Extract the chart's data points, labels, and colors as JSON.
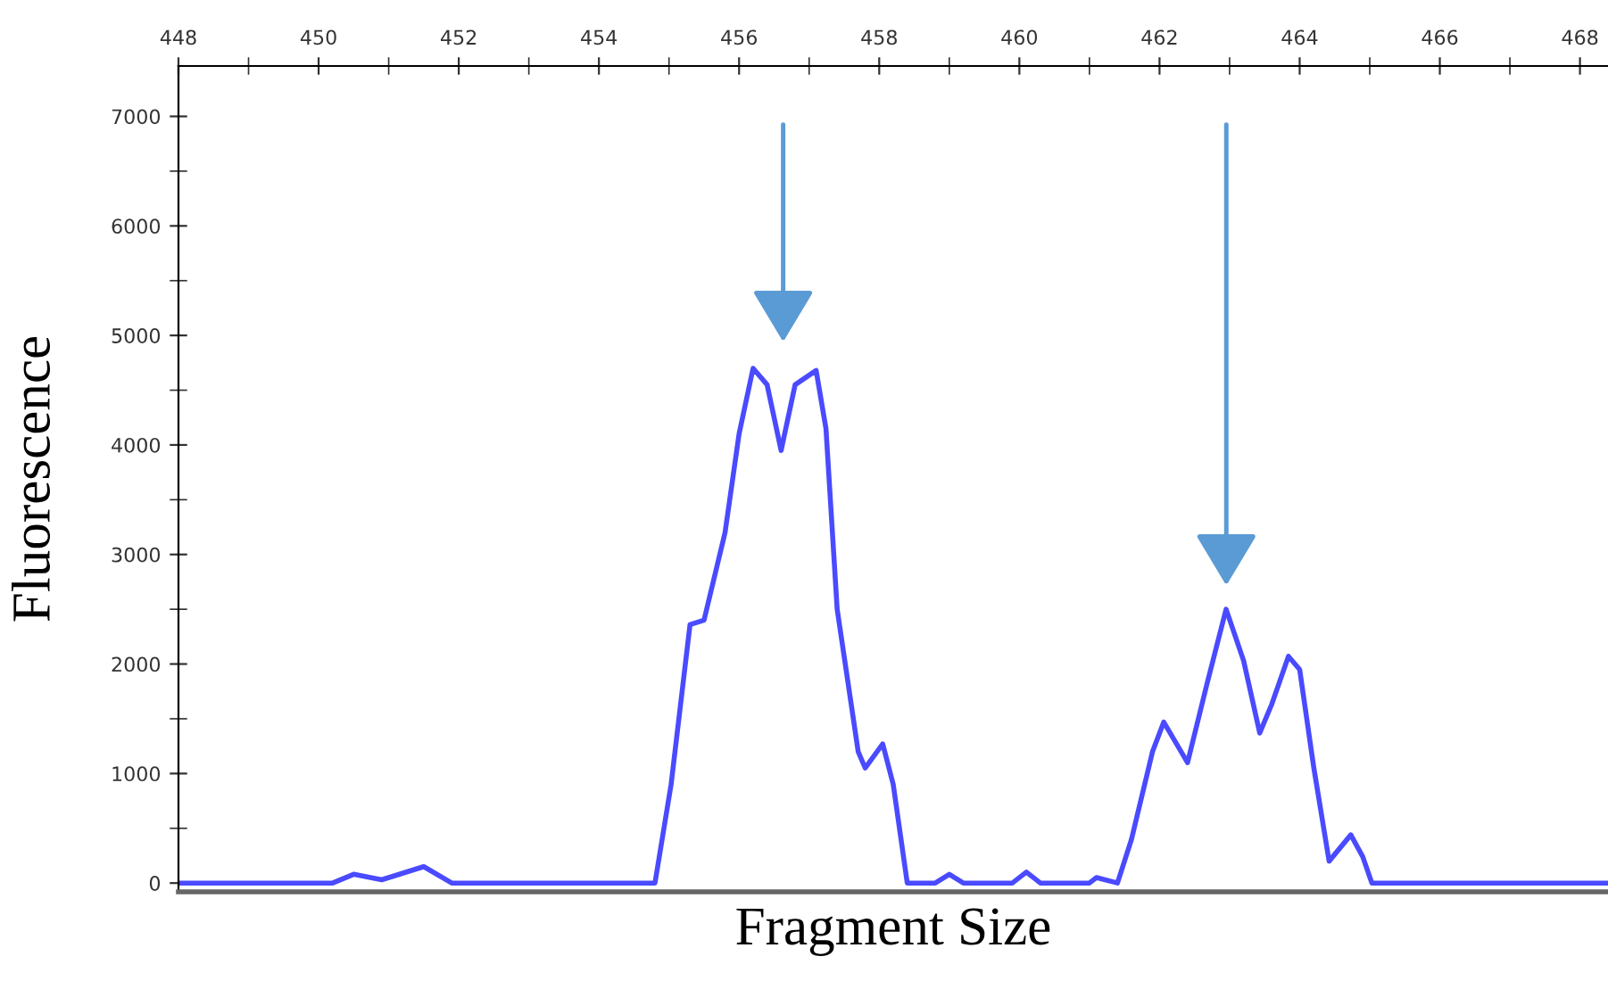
{
  "chart_data": {
    "type": "line",
    "xlabel": "Fragment Size",
    "ylabel": "Fluorescence",
    "x": [
      448,
      450.2,
      450.5,
      450.9,
      451.5,
      451.9,
      454.8,
      455.03,
      455.3,
      455.5,
      455.8,
      456.0,
      456.2,
      456.4,
      456.6,
      456.8,
      457.1,
      457.24,
      457.4,
      457.7,
      457.8,
      458.05,
      458.2,
      458.4,
      458.8,
      459.0,
      459.2,
      459.9,
      460.1,
      460.3,
      461.0,
      461.1,
      461.4,
      461.6,
      461.9,
      462.06,
      462.4,
      462.67,
      462.95,
      463.2,
      463.43,
      463.6,
      463.84,
      464.0,
      464.2,
      464.42,
      464.73,
      464.9,
      465.03,
      468.4
    ],
    "series": [
      {
        "color": "#4a4aff",
        "values": [
          0,
          0,
          80,
          30,
          150,
          0,
          0,
          900,
          2360,
          2400,
          3200,
          4100,
          4700,
          4550,
          3950,
          4550,
          4680,
          4150,
          2500,
          1200,
          1050,
          1270,
          900,
          0,
          0,
          80,
          0,
          0,
          100,
          0,
          0,
          50,
          0,
          400,
          1200,
          1470,
          1100,
          1800,
          2500,
          2030,
          1370,
          1630,
          2070,
          1950,
          1060,
          200,
          440,
          240,
          0,
          0
        ]
      }
    ],
    "xlim": [
      448,
      468.4
    ],
    "ylim": [
      -80,
      7460
    ],
    "xticks": [
      448,
      450,
      452,
      454,
      456,
      458,
      460,
      462,
      464,
      466,
      468
    ],
    "yticks": [
      0,
      1000,
      2000,
      3000,
      4000,
      5000,
      6000,
      7000
    ],
    "grid": false
  }
}
